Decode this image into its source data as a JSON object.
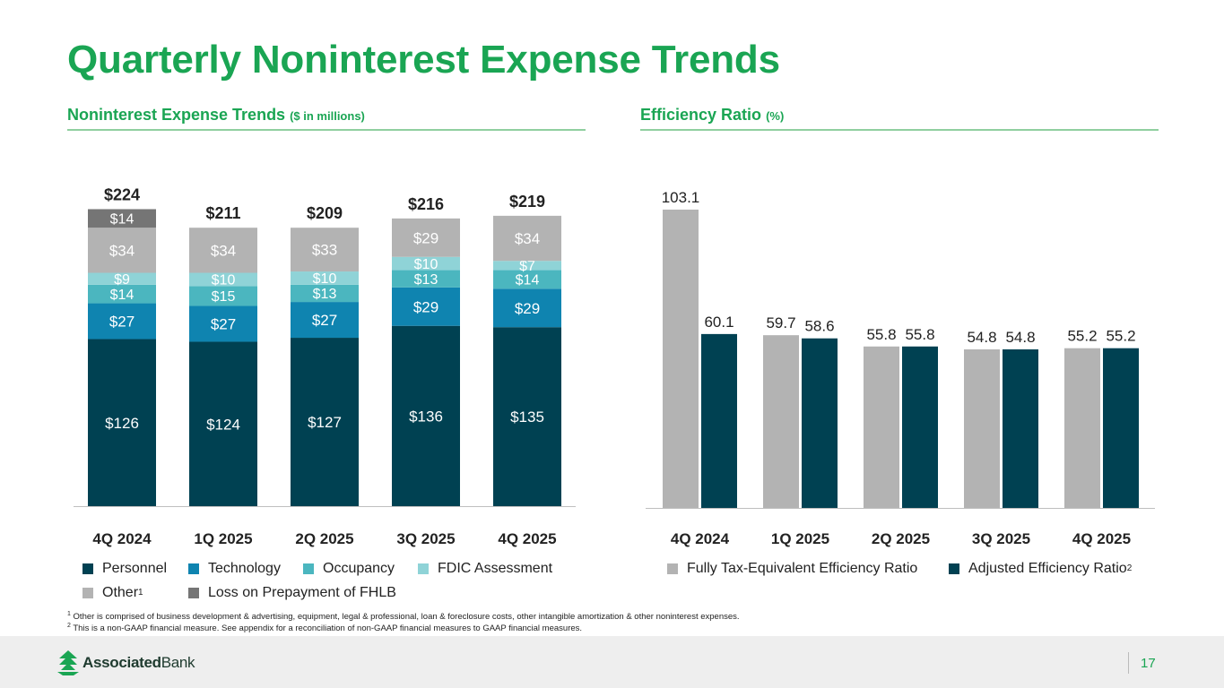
{
  "title": "Quarterly Noninterest Expense Trends",
  "left_section": {
    "heading": "Noninterest Expense Trends",
    "unit": "($ in millions)"
  },
  "right_section": {
    "heading": "Efficiency Ratio",
    "unit": "(%)"
  },
  "chart_data": [
    {
      "type": "bar",
      "stacked": true,
      "title": "Noninterest Expense Trends ($ in millions)",
      "categories": [
        "4Q 2024",
        "1Q 2025",
        "2Q 2025",
        "3Q 2025",
        "4Q 2025"
      ],
      "totals": [
        224,
        211,
        209,
        216,
        219
      ],
      "total_labels": [
        "$224",
        "$211",
        "$209",
        "$216",
        "$219"
      ],
      "series": [
        {
          "name": "Personnel",
          "color": "#004152",
          "label_color": "#ffffff",
          "values": [
            126,
            124,
            127,
            136,
            135
          ]
        },
        {
          "name": "Technology",
          "color": "#0f84b0",
          "label_color": "#ffffff",
          "values": [
            27,
            27,
            27,
            29,
            29
          ]
        },
        {
          "name": "Occupancy",
          "color": "#4bb6bf",
          "label_color": "#ffffff",
          "values": [
            14,
            15,
            13,
            13,
            14
          ]
        },
        {
          "name": "FDIC Assessment",
          "color": "#8fd3d7",
          "label_color": "#ffffff",
          "values": [
            9,
            10,
            10,
            10,
            7
          ]
        },
        {
          "name": "Other",
          "sup": "1",
          "color": "#b3b3b3",
          "label_color": "#ffffff",
          "values": [
            34,
            34,
            33,
            29,
            34
          ]
        },
        {
          "name": "Loss on Prepayment of FHLB",
          "color": "#757575",
          "label_color": "#ffffff",
          "values": [
            14,
            null,
            null,
            null,
            null
          ]
        }
      ],
      "legend_position": "bottom"
    },
    {
      "type": "bar",
      "title": "Efficiency Ratio (%)",
      "categories": [
        "4Q 2024",
        "1Q 2025",
        "2Q 2025",
        "3Q 2025",
        "4Q 2025"
      ],
      "series": [
        {
          "name": "Fully Tax-Equivalent Efficiency Ratio",
          "color": "#b3b3b3",
          "values": [
            103.1,
            59.7,
            55.8,
            54.8,
            55.2
          ]
        },
        {
          "name": "Adjusted Efficiency Ratio",
          "sup": "2",
          "color": "#004152",
          "values": [
            60.1,
            58.6,
            55.8,
            54.8,
            55.2
          ]
        }
      ],
      "legend_position": "bottom"
    }
  ],
  "footnotes": [
    {
      "num": "1",
      "text": "Other is comprised of business development & advertising, equipment, legal & professional, loan & foreclosure costs, other intangible amortization & other noninterest expenses."
    },
    {
      "num": "2",
      "text": "This is a non-GAAP financial measure. See appendix for a reconciliation of non-GAAP financial measures to GAAP financial measures."
    }
  ],
  "logo": {
    "bold": "Associated",
    "light": "Bank"
  },
  "page_number": "17"
}
